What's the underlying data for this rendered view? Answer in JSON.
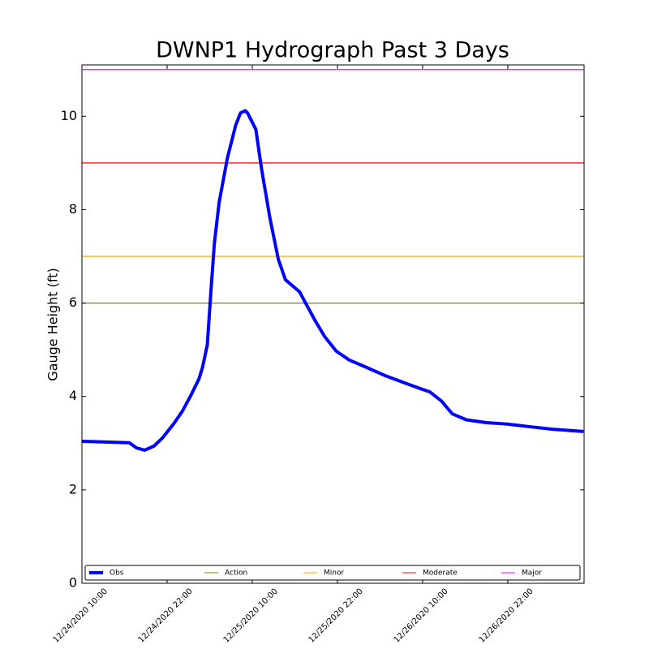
{
  "chart_data": {
    "type": "line",
    "title": "DWNP1 Hydrograph Past 3 Days",
    "y_label": "Gauge Height (ft)",
    "xlim": [
      "2020-12-24T10:00",
      "2020-12-27T08:45"
    ],
    "xticks": [
      {
        "value": "2020-12-24T10:00",
        "label": "12/24/2020 10:00"
      },
      {
        "value": "2020-12-24T22:00",
        "label": "12/24/2020 22:00"
      },
      {
        "value": "2020-12-25T10:00",
        "label": "12/25/2020 10:00"
      },
      {
        "value": "2020-12-25T22:00",
        "label": "12/25/2020 22:00"
      },
      {
        "value": "2020-12-26T10:00",
        "label": "12/26/2020 10:00"
      },
      {
        "value": "2020-12-26T22:00",
        "label": "12/26/2020 22:00"
      }
    ],
    "ylim": [
      0,
      11.1
    ],
    "yticks": [
      0,
      2,
      4,
      6,
      8,
      10
    ],
    "legend_position": "lower center",
    "x": [
      "2020-12-24T10:00",
      "2020-12-24T16:40",
      "2020-12-24T17:40",
      "2020-12-24T18:50",
      "2020-12-24T20:10",
      "2020-12-24T21:20",
      "2020-12-24T23:00",
      "2020-12-25T00:10",
      "2020-12-25T01:20",
      "2020-12-25T02:30",
      "2020-12-25T03:00",
      "2020-12-25T03:40",
      "2020-12-25T04:10",
      "2020-12-25T04:40",
      "2020-12-25T05:20",
      "2020-12-25T06:30",
      "2020-12-25T07:40",
      "2020-12-25T08:20",
      "2020-12-25T09:00",
      "2020-12-25T09:20",
      "2020-12-25T10:30",
      "2020-12-25T11:20",
      "2020-12-25T12:30",
      "2020-12-25T13:40",
      "2020-12-25T14:40",
      "2020-12-25T16:40",
      "2020-12-25T18:50",
      "2020-12-25T20:10",
      "2020-12-25T21:50",
      "2020-12-25T23:40",
      "2020-12-26T01:50",
      "2020-12-26T04:40",
      "2020-12-26T07:40",
      "2020-12-26T09:50",
      "2020-12-26T11:00",
      "2020-12-26T12:40",
      "2020-12-26T14:10",
      "2020-12-26T16:10",
      "2020-12-26T19:00",
      "2020-12-26T21:50",
      "2020-12-27T00:40",
      "2020-12-27T04:10",
      "2020-12-27T08:40"
    ],
    "series": [
      {
        "name": "Obs",
        "color": "#0000ff",
        "values": [
          3.04,
          3.01,
          2.9,
          2.85,
          2.94,
          3.11,
          3.43,
          3.69,
          4.02,
          4.38,
          4.63,
          5.11,
          6.24,
          7.29,
          8.16,
          9.11,
          9.81,
          10.07,
          10.12,
          10.07,
          9.72,
          8.85,
          7.81,
          6.94,
          6.5,
          6.24,
          5.63,
          5.29,
          4.97,
          4.78,
          4.64,
          4.45,
          4.28,
          4.16,
          4.1,
          3.9,
          3.63,
          3.5,
          3.44,
          3.41,
          3.36,
          3.3,
          3.25
        ]
      }
    ],
    "thresholds": [
      {
        "name": "Action",
        "color": "#808000",
        "value": 6
      },
      {
        "name": "Minor",
        "color": "#ffa500",
        "value": 7
      },
      {
        "name": "Moderate",
        "color": "#ff0000",
        "value": 9
      },
      {
        "name": "Major",
        "color": "#ff00ff",
        "value": 11
      }
    ]
  }
}
